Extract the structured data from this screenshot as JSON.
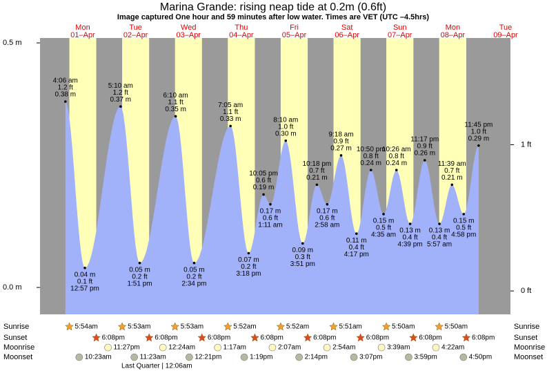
{
  "chart_data": {
    "type": "area",
    "title": "Marina Grande: rising  neap tide at 0.2m (0.6ft)",
    "subtitle": "Image captured One hour and 59 minutes after low water. Times are VET (UTC –4.5hrs)",
    "color": "#a2b2fa",
    "night_color": "#9a9a9a",
    "day_color": "#ffffb8",
    "ylim": [
      -0.055,
      0.51
    ],
    "yticks": [
      {
        "value": 0.5,
        "label": "0.5 m"
      },
      {
        "value": 0,
        "label": "0.0 m"
      }
    ],
    "y2lim": [
      -0.16,
      1.73
    ],
    "y2ticks": [
      {
        "value": 1,
        "label": "1 ft"
      },
      {
        "value": 0,
        "label": "0 ft"
      }
    ],
    "row_labels": [
      "Sunrise",
      "Sunset",
      "Moonrise",
      "Moonset"
    ],
    "moon_phase": "Last Quarter | 12:06am",
    "days": [
      {
        "day": "Mon",
        "date": "01–Apr",
        "sunrise": "5:54am",
        "sunset": "6:08pm",
        "moonrise": "11:27pm",
        "moonset": "10:23am",
        "extremes": [
          {
            "time": "4:06 am",
            "ft": 1.2,
            "ft_label": "1.2 ft",
            "m": 0.38,
            "m_label": "0.38 m"
          },
          {
            "time": "12:57 pm",
            "ft": 0.1,
            "ft_label": "0.1 ft",
            "m": 0.04,
            "m_label": "0.04 m"
          }
        ]
      },
      {
        "day": "Tue",
        "date": "02–Apr",
        "sunrise": "5:53am",
        "sunset": "6:08pm",
        "moonset": "11:23am",
        "extremes": [
          {
            "time": "5:10 am",
            "ft": 1.2,
            "ft_label": "1.2 ft",
            "m": 0.37,
            "m_label": "0.37 m"
          },
          {
            "time": "1:51 pm",
            "ft": 0.2,
            "ft_label": "0.2 ft",
            "m": 0.05,
            "m_label": "0.05 m"
          }
        ]
      },
      {
        "day": "Wed",
        "date": "03–Apr",
        "sunrise": "5:53am",
        "sunset": "6:08pm",
        "moonrise": "12:24am",
        "moonset": "12:21pm",
        "extremes": [
          {
            "time": "6:10 am",
            "ft": 1.1,
            "ft_label": "1.1 ft",
            "m": 0.35,
            "m_label": "0.35 m"
          },
          {
            "time": "2:34 pm",
            "ft": 0.2,
            "ft_label": "0.2 ft",
            "m": 0.05,
            "m_label": "0.05 m"
          }
        ]
      },
      {
        "day": "Thu",
        "date": "04–Apr",
        "sunrise": "5:52am",
        "sunset": "6:08pm",
        "moonrise": "1:17am",
        "moonset": "1:19pm",
        "extremes": [
          {
            "time": "7:05 am",
            "ft": 1.1,
            "ft_label": "1.1 ft",
            "m": 0.33,
            "m_label": "0.33 m"
          },
          {
            "time": "3:18 pm",
            "ft": 0.2,
            "ft_label": "0.2 ft",
            "m": 0.07,
            "m_label": "0.07 m"
          },
          {
            "time": "10:05 pm",
            "ft": 0.6,
            "ft_label": "0.6 ft",
            "m": 0.19,
            "m_label": "0.19 m"
          }
        ]
      },
      {
        "day": "Fri",
        "date": "05–Apr",
        "sunrise": "5:52am",
        "sunset": "6:08pm",
        "moonrise": "2:07am",
        "moonset": "2:14pm",
        "extremes": [
          {
            "time": "1:11 am",
            "ft": 0.6,
            "ft_label": "0.6 ft",
            "m": 0.17,
            "m_label": "0.17 m"
          },
          {
            "time": "8:10 am",
            "ft": 1.0,
            "ft_label": "1.0 ft",
            "m": 0.3,
            "m_label": "0.30 m"
          },
          {
            "time": "3:51 pm",
            "ft": 0.3,
            "ft_label": "0.3 ft",
            "m": 0.09,
            "m_label": "0.09 m"
          },
          {
            "time": "10:18 pm",
            "ft": 0.7,
            "ft_label": "0.7 ft",
            "m": 0.21,
            "m_label": "0.21 m"
          }
        ]
      },
      {
        "day": "Sat",
        "date": "06–Apr",
        "sunrise": "5:51am",
        "sunset": "6:08pm",
        "moonrise": "2:54am",
        "moonset": "3:07pm",
        "extremes": [
          {
            "time": "2:58 am",
            "ft": 0.6,
            "ft_label": "0.6 ft",
            "m": 0.17,
            "m_label": "0.17 m"
          },
          {
            "time": "9:18 am",
            "ft": 0.9,
            "ft_label": "0.9 ft",
            "m": 0.27,
            "m_label": "0.27 m"
          },
          {
            "time": "4:17 pm",
            "ft": 0.4,
            "ft_label": "0.4 ft",
            "m": 0.11,
            "m_label": "0.11 m"
          },
          {
            "time": "10:50 pm",
            "ft": 0.8,
            "ft_label": "0.8 ft",
            "m": 0.24,
            "m_label": "0.24 m"
          }
        ]
      },
      {
        "day": "Sun",
        "date": "07–Apr",
        "sunrise": "5:50am",
        "sunset": "6:08pm",
        "moonrise": "3:39am",
        "moonset": "3:59pm",
        "extremes": [
          {
            "time": "4:35 am",
            "ft": 0.5,
            "ft_label": "0.5 ft",
            "m": 0.15,
            "m_label": "0.15 m"
          },
          {
            "time": "10:26 am",
            "ft": 0.8,
            "ft_label": "0.8 ft",
            "m": 0.24,
            "m_label": "0.24 m"
          },
          {
            "time": "4:39 pm",
            "ft": 0.4,
            "ft_label": "0.4 ft",
            "m": 0.13,
            "m_label": "0.13 m"
          },
          {
            "time": "11:17 pm",
            "ft": 0.9,
            "ft_label": "0.9 ft",
            "m": 0.26,
            "m_label": "0.26 m"
          }
        ]
      },
      {
        "day": "Mon",
        "date": "08–Apr",
        "sunrise": "5:50am",
        "sunset": "6:08pm",
        "moonrise": "4:22am",
        "moonset": "4:50pm",
        "extremes": [
          {
            "time": "5:57 am",
            "ft": 0.4,
            "ft_label": "0.4 ft",
            "m": 0.13,
            "m_label": "0.13 m"
          },
          {
            "time": "11:39 am",
            "ft": 0.7,
            "ft_label": "0.7 ft",
            "m": 0.21,
            "m_label": "0.21 m"
          },
          {
            "time": "4:58 pm",
            "ft": 0.5,
            "ft_label": "0.5 ft",
            "m": 0.15,
            "m_label": "0.15 m"
          },
          {
            "time": "11:45 pm",
            "ft": 1.0,
            "ft_label": "1.0 ft",
            "m": 0.29,
            "m_label": "0.29 m"
          }
        ]
      },
      {
        "day": "Tue",
        "date": "09–Apr",
        "extremes": []
      }
    ]
  }
}
